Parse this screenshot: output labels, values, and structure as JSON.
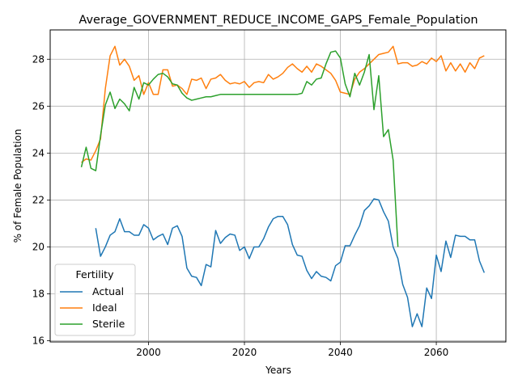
{
  "chart_data": {
    "type": "line",
    "title": "Average_GOVERNMENT_REDUCE_INCOME_GAPS_Female_Population",
    "xlabel": "Years",
    "ylabel": "% of Female Population",
    "xlim": [
      2081.5,
      2135.5
    ],
    "ylim": [
      15.95,
      29.25
    ],
    "xlim_display": [
      1979.5,
      2074.5
    ],
    "xticks": [
      2000,
      2020,
      2040,
      2060
    ],
    "yticks": [
      16,
      18,
      20,
      22,
      24,
      26,
      28
    ],
    "grid": true,
    "legend": {
      "title": "Fertility",
      "position": "lower-left"
    },
    "series": [
      {
        "name": "Actual",
        "color": "#1f77b4",
        "x": [
          1989,
          1990,
          1991,
          1992,
          1993,
          1994,
          1995,
          1996,
          1997,
          1998,
          1999,
          2000,
          2001,
          2002,
          2003,
          2004,
          2005,
          2006,
          2007,
          2008,
          2009,
          2010,
          2011,
          2012,
          2013,
          2014,
          2015,
          2016,
          2017,
          2018,
          2019,
          2020,
          2021,
          2022,
          2023,
          2024,
          2025,
          2026,
          2027,
          2028,
          2029,
          2030,
          2031,
          2032,
          2033,
          2034,
          2035,
          2036,
          2037,
          2038,
          2039,
          2040,
          2041,
          2042,
          2043,
          2044,
          2045,
          2046,
          2047,
          2048,
          2049,
          2050,
          2051,
          2052,
          2053,
          2054,
          2055,
          2056,
          2057,
          2058,
          2059,
          2060,
          2061,
          2062,
          2063,
          2064,
          2065,
          2066,
          2067,
          2068,
          2069,
          2070
        ],
        "values": [
          20.8,
          19.6,
          20.0,
          20.5,
          20.65,
          21.2,
          20.65,
          20.65,
          20.5,
          20.5,
          20.95,
          20.8,
          20.3,
          20.45,
          20.55,
          20.1,
          20.8,
          20.9,
          20.45,
          19.1,
          18.75,
          18.7,
          18.35,
          19.25,
          19.15,
          20.7,
          20.15,
          20.4,
          20.55,
          20.5,
          19.85,
          20.0,
          19.5,
          20.0,
          20.0,
          20.35,
          20.85,
          21.2,
          21.3,
          21.3,
          20.95,
          20.1,
          19.65,
          19.6,
          19.0,
          18.65,
          18.95,
          18.75,
          18.7,
          18.55,
          19.2,
          19.35,
          20.05,
          20.05,
          20.5,
          20.9,
          21.55,
          21.75,
          22.05,
          22.0,
          21.5,
          21.1,
          20.0,
          19.5,
          18.4,
          17.85,
          16.6,
          17.15,
          16.6,
          18.25,
          17.8,
          19.65,
          18.95,
          20.25,
          19.55,
          20.5,
          20.45,
          20.45,
          20.3,
          20.3,
          19.4,
          18.9
        ]
      },
      {
        "name": "Ideal",
        "color": "#ff7f0e",
        "x": [
          1986,
          1987,
          1988,
          1989,
          1990,
          1991,
          1992,
          1993,
          1994,
          1995,
          1996,
          1997,
          1998,
          1999,
          2000,
          2001,
          2002,
          2003,
          2004,
          2005,
          2006,
          2007,
          2008,
          2009,
          2010,
          2011,
          2012,
          2013,
          2014,
          2015,
          2016,
          2017,
          2018,
          2019,
          2020,
          2021,
          2022,
          2023,
          2024,
          2025,
          2026,
          2027,
          2028,
          2029,
          2030,
          2031,
          2032,
          2033,
          2034,
          2035,
          2036,
          2037,
          2038,
          2039,
          2040,
          2041,
          2042,
          2043,
          2044,
          2045,
          2046,
          2047,
          2048,
          2049,
          2050,
          2051,
          2052,
          2053,
          2054,
          2055,
          2056,
          2057,
          2058,
          2059,
          2060,
          2061,
          2062,
          2063,
          2064,
          2065,
          2066,
          2067,
          2068,
          2069,
          2070
        ],
        "values": [
          23.6,
          23.75,
          23.7,
          24.1,
          24.6,
          26.75,
          28.15,
          28.55,
          27.75,
          28.0,
          27.7,
          27.1,
          27.3,
          26.5,
          27.0,
          26.5,
          26.5,
          27.55,
          27.55,
          26.85,
          26.9,
          26.75,
          26.5,
          27.15,
          27.1,
          27.2,
          26.75,
          27.15,
          27.2,
          27.35,
          27.1,
          26.95,
          27.0,
          26.95,
          27.05,
          26.8,
          27.0,
          27.05,
          27.0,
          27.35,
          27.15,
          27.25,
          27.4,
          27.65,
          27.8,
          27.6,
          27.45,
          27.7,
          27.45,
          27.8,
          27.7,
          27.55,
          27.4,
          27.1,
          26.6,
          26.55,
          26.5,
          27.15,
          27.45,
          27.6,
          27.8,
          28.0,
          28.2,
          28.25,
          28.3,
          28.55,
          27.8,
          27.85,
          27.85,
          27.7,
          27.75,
          27.9,
          27.8,
          28.05,
          27.9,
          28.15,
          27.5,
          27.85,
          27.5,
          27.8,
          27.45,
          27.85,
          27.6,
          28.05,
          28.15
        ]
      },
      {
        "name": "Sterile",
        "color": "#2ca02c",
        "x": [
          1986,
          1987,
          1988,
          1989,
          1990,
          1991,
          1992,
          1993,
          1994,
          1995,
          1996,
          1997,
          1998,
          1999,
          2000,
          2001,
          2002,
          2003,
          2004,
          2005,
          2006,
          2007,
          2008,
          2009,
          2010,
          2011,
          2012,
          2013,
          2014,
          2015,
          2016,
          2017,
          2018,
          2019,
          2020,
          2021,
          2022,
          2023,
          2024,
          2025,
          2026,
          2027,
          2028,
          2029,
          2030,
          2031,
          2032,
          2033,
          2034,
          2035,
          2036,
          2037,
          2038,
          2039,
          2040,
          2041,
          2042,
          2043,
          2044,
          2045,
          2046,
          2047,
          2048,
          2049,
          2050,
          2051,
          2052
        ],
        "values": [
          23.4,
          24.25,
          23.35,
          23.25,
          24.75,
          26.05,
          26.6,
          25.9,
          26.3,
          26.1,
          25.8,
          26.8,
          26.3,
          27.0,
          26.9,
          27.15,
          27.35,
          27.4,
          27.25,
          26.95,
          26.9,
          26.55,
          26.35,
          26.25,
          26.3,
          26.35,
          26.4,
          26.4,
          26.45,
          26.5,
          26.5,
          26.5,
          26.5,
          26.5,
          26.5,
          26.5,
          26.5,
          26.5,
          26.5,
          26.5,
          26.5,
          26.5,
          26.5,
          26.5,
          26.5,
          26.5,
          26.55,
          27.05,
          26.9,
          27.15,
          27.2,
          27.8,
          28.3,
          28.35,
          28.05,
          26.95,
          26.4,
          27.4,
          26.9,
          27.45,
          28.2,
          25.85,
          27.3,
          24.7,
          25.0,
          23.7,
          20.0
        ]
      }
    ]
  }
}
